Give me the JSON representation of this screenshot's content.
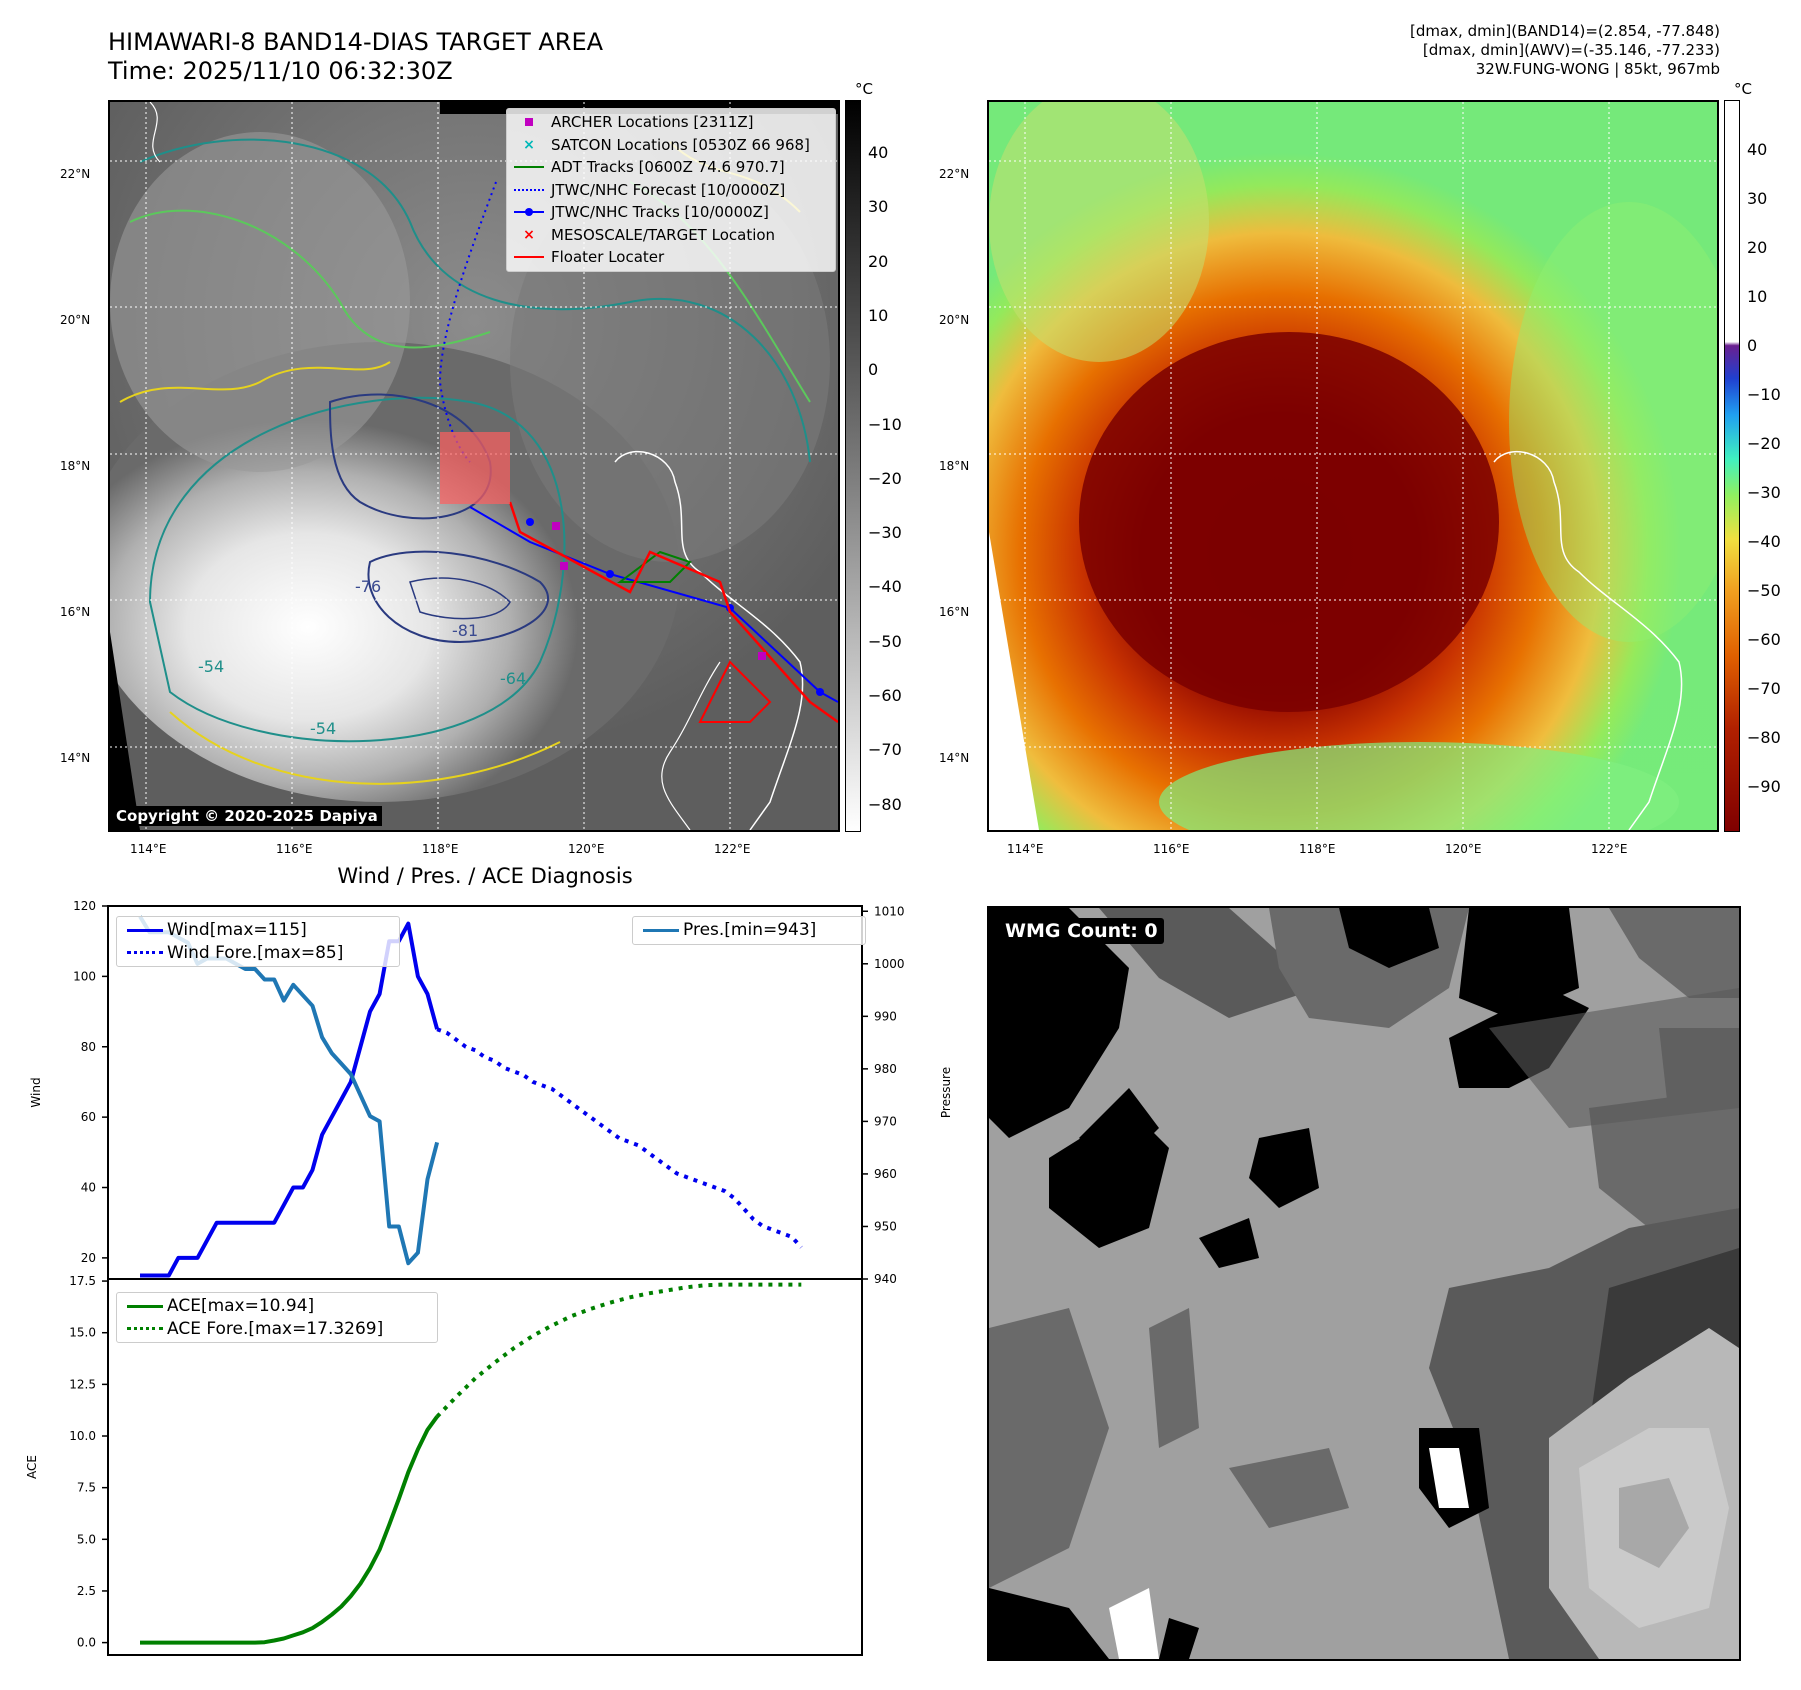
{
  "header": {
    "title_line1": "HIMAWARI-8 BAND14-DIAS TARGET AREA",
    "title_line2": "Time: 2025/11/10 06:32:30Z",
    "info_line1": "[dmax, dmin](BAND14)=(2.854, -77.848)",
    "info_line2": "[dmax, dmin](AWV)=(-35.146, -77.233)",
    "info_line3": "32W.FUNG-WONG | 85kt, 967mb"
  },
  "map": {
    "lat_labels": [
      "22°N",
      "20°N",
      "18°N",
      "16°N",
      "14°N"
    ],
    "lon_labels": [
      "114°E",
      "116°E",
      "118°E",
      "120°E",
      "122°E"
    ],
    "contour_labels": [
      "-76",
      "-81",
      "-54",
      "-54",
      "-64"
    ],
    "copyright": "Copyright © 2020-2025 Dapiya",
    "legend": [
      {
        "label": "ARCHER Locations [2311Z]",
        "color": "#c000c0",
        "kind": "square"
      },
      {
        "label": "SATCON Locations [0530Z 66 968]",
        "color": "#00b8b8",
        "kind": "x"
      },
      {
        "label": "ADT Tracks [0600Z 74.6 970.7]",
        "color": "#008000",
        "kind": "line"
      },
      {
        "label": "JTWC/NHC Forecast [10/0000Z]",
        "color": "#0000ff",
        "kind": "dotted"
      },
      {
        "label": "JTWC/NHC Tracks [10/0000Z]",
        "color": "#0000ff",
        "kind": "linedot"
      },
      {
        "label": "MESOSCALE/TARGET Location",
        "color": "#ff0000",
        "kind": "x"
      },
      {
        "label": "Floater Locater",
        "color": "#ff0000",
        "kind": "line"
      }
    ]
  },
  "colorbar_gray": {
    "unit": "°C",
    "ticks": [
      "40",
      "30",
      "20",
      "10",
      "0",
      "−10",
      "−20",
      "−30",
      "−40",
      "−50",
      "−60",
      "−70",
      "−80"
    ]
  },
  "colorbar_color": {
    "unit": "°C",
    "ticks": [
      "40",
      "30",
      "20",
      "10",
      "0",
      "−10",
      "−20",
      "−30",
      "−40",
      "−50",
      "−60",
      "−70",
      "−80",
      "−90"
    ]
  },
  "wmg": {
    "label": "WMG Count: 0"
  },
  "chart_data": [
    {
      "type": "line",
      "title": "Wind / Pres. / ACE Diagnosis",
      "ylabel": "Wind",
      "y2label": "Pressure",
      "ylim": [
        14,
        120
      ],
      "y2lim": [
        940,
        1011
      ],
      "yticks": [
        "120",
        "100",
        "80",
        "60",
        "40",
        "20"
      ],
      "y2ticks": [
        "1010",
        "1000",
        "990",
        "980",
        "970",
        "960",
        "950",
        "940"
      ],
      "series": [
        {
          "name": "Wind[max=115]",
          "style": "solid",
          "color": "#0000ee",
          "x": [
            0,
            1,
            2,
            3,
            4,
            5,
            6,
            7,
            8,
            9,
            10,
            11,
            12,
            13,
            14,
            15,
            16,
            17,
            18,
            19,
            20,
            21,
            22,
            23,
            24,
            25,
            26,
            27,
            28,
            29,
            30,
            31
          ],
          "values": [
            15,
            15,
            15,
            15,
            20,
            20,
            20,
            25,
            30,
            30,
            30,
            30,
            30,
            30,
            30,
            35,
            40,
            40,
            45,
            55,
            60,
            65,
            70,
            80,
            90,
            95,
            110,
            110,
            115,
            100,
            95,
            85
          ]
        },
        {
          "name": "Wind Fore.[max=85]",
          "style": "dotted",
          "color": "#0000ee",
          "x": [
            31,
            32,
            33,
            34,
            35,
            36,
            37,
            38,
            39,
            40,
            41,
            42,
            43,
            44,
            45,
            46,
            47,
            48,
            49,
            50,
            51,
            52,
            53,
            54,
            55,
            56,
            57,
            58,
            59,
            60,
            61,
            62,
            63,
            64,
            65,
            66,
            67,
            68,
            69
          ],
          "values": [
            85,
            84,
            82,
            80,
            79,
            77,
            76,
            74,
            73,
            72,
            70,
            69,
            68,
            66,
            64,
            62,
            60,
            58,
            56,
            54,
            53,
            52,
            50,
            48,
            46,
            44,
            43,
            42,
            41,
            40,
            39,
            37,
            34,
            31,
            29,
            28,
            27,
            26,
            23
          ]
        },
        {
          "name": "Pres.[min=943]",
          "style": "solid",
          "color": "#1f77b4",
          "axis": "y2",
          "x": [
            0,
            1,
            2,
            3,
            4,
            5,
            6,
            7,
            8,
            9,
            10,
            11,
            12,
            13,
            14,
            15,
            16,
            17,
            18,
            19,
            20,
            21,
            22,
            23,
            24,
            25,
            26,
            27,
            28,
            29,
            30,
            31
          ],
          "values": [
            1009,
            1006,
            1006,
            1006,
            1005,
            1004,
            1000,
            1001,
            1001,
            1001,
            1000,
            999,
            999,
            997,
            997,
            993,
            996,
            994,
            992,
            986,
            983,
            981,
            979,
            975,
            971,
            970,
            950,
            950,
            943,
            945,
            959,
            966
          ]
        }
      ]
    },
    {
      "type": "line",
      "ylabel": "ACE",
      "ylim": [
        -0.6,
        17.6
      ],
      "yticks": [
        "17.5",
        "15.0",
        "12.5",
        "10.0",
        "7.5",
        "5.0",
        "2.5",
        "0.0"
      ],
      "series": [
        {
          "name": "ACE[max=10.94]",
          "style": "solid",
          "color": "#008000",
          "x": [
            0,
            1,
            2,
            3,
            4,
            5,
            6,
            7,
            8,
            9,
            10,
            11,
            12,
            13,
            14,
            15,
            16,
            17,
            18,
            19,
            20,
            21,
            22,
            23,
            24,
            25,
            26,
            27,
            28,
            29,
            30,
            31
          ],
          "values": [
            0,
            0,
            0,
            0,
            0,
            0,
            0,
            0,
            0,
            0,
            0,
            0,
            0,
            0.02,
            0.1,
            0.2,
            0.35,
            0.5,
            0.7,
            1.0,
            1.35,
            1.75,
            2.25,
            2.85,
            3.6,
            4.5,
            5.7,
            6.95,
            8.25,
            9.35,
            10.3,
            10.94
          ]
        },
        {
          "name": "ACE Fore.[max=17.3269]",
          "style": "dotted",
          "color": "#008000",
          "x": [
            31,
            33,
            35,
            37,
            39,
            41,
            43,
            45,
            47,
            49,
            51,
            53,
            55,
            57,
            59,
            61,
            63,
            65,
            67,
            69
          ],
          "values": [
            10.94,
            11.9,
            12.8,
            13.55,
            14.25,
            14.85,
            15.35,
            15.8,
            16.15,
            16.45,
            16.7,
            16.9,
            17.05,
            17.2,
            17.3,
            17.33,
            17.33,
            17.33,
            17.33,
            17.33
          ]
        }
      ]
    }
  ]
}
